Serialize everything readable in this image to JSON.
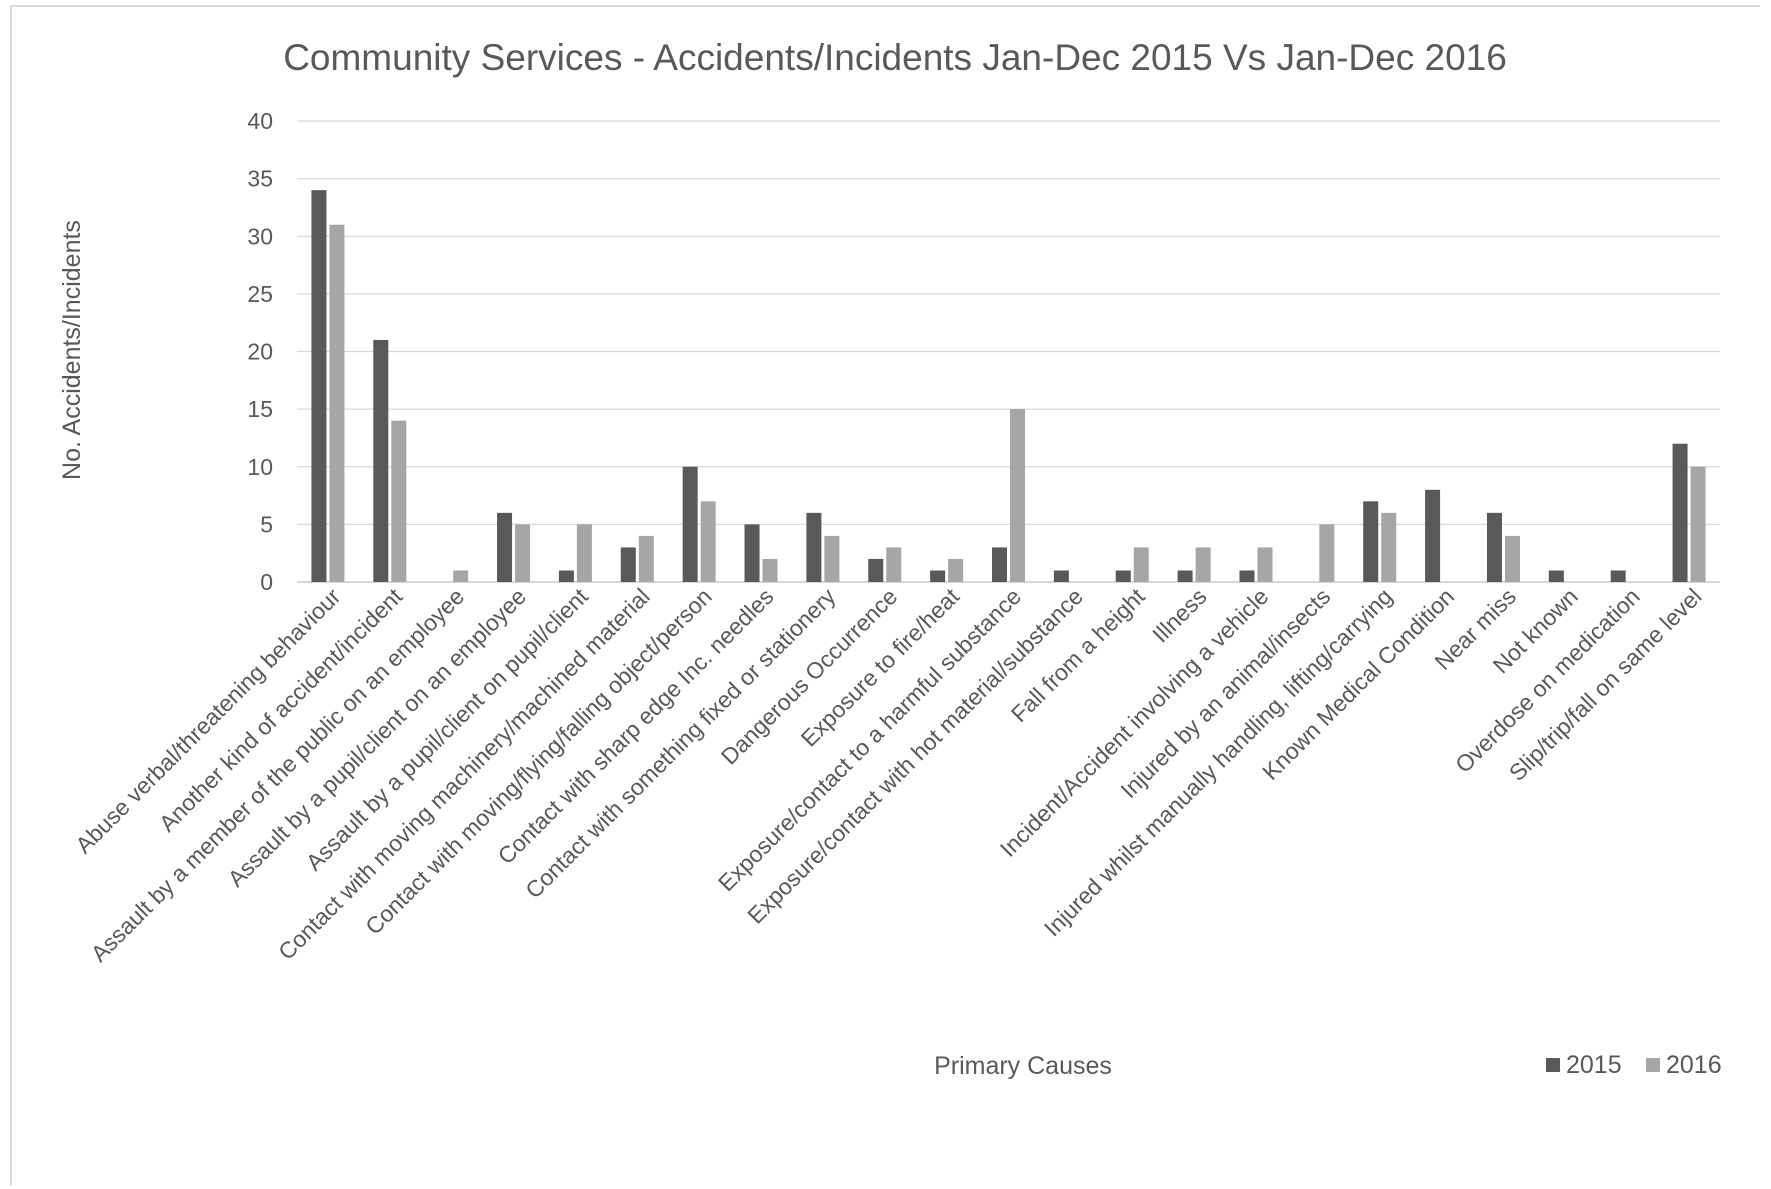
{
  "chart_data": {
    "type": "bar",
    "title": "Community Services - Accidents/Incidents Jan-Dec 2015 Vs Jan-Dec 2016",
    "xlabel": "Primary Causes",
    "ylabel": "No. Accidents/Incidents",
    "ylim": [
      0,
      40
    ],
    "yticks": [
      0,
      5,
      10,
      15,
      20,
      25,
      30,
      35,
      40
    ],
    "grid": true,
    "legend_position": "bottom-right",
    "categories": [
      "Abuse verbal/threatening behaviour",
      "Another kind of accident/incident",
      "Assault by a member of the public on an employee",
      "Assault by a pupil/client on an employee",
      "Assault by a pupil/client on pupil/client",
      "Contact with moving machinery/machined material",
      "Contact with moving/flying/falling object/person",
      "Contact with sharp edge Inc. needles",
      "Contact with something fixed or stationery",
      "Dangerous Occurrence",
      "Exposure to fire/heat",
      "Exposure/contact to a harmful substance",
      "Exposure/contact with hot material/substance",
      "Fall from a height",
      "Illness",
      "Incident/Accident involving a vehicle",
      "Injured by an animal/insects",
      "Injured whilst manually handling, lifting/carrying",
      "Known Medical Condition",
      "Near miss",
      "Not known",
      "Overdose on medication",
      "Slip/trip/fall on same level"
    ],
    "series": [
      {
        "name": "2015",
        "color": "#595959",
        "values": [
          34,
          21,
          0,
          6,
          1,
          3,
          10,
          5,
          6,
          2,
          1,
          3,
          1,
          1,
          1,
          1,
          0,
          7,
          8,
          6,
          1,
          1,
          12
        ]
      },
      {
        "name": "2016",
        "color": "#a6a6a6",
        "values": [
          31,
          14,
          1,
          5,
          5,
          4,
          7,
          2,
          4,
          3,
          2,
          15,
          0,
          3,
          3,
          3,
          5,
          6,
          0,
          4,
          0,
          0,
          10
        ]
      }
    ]
  }
}
